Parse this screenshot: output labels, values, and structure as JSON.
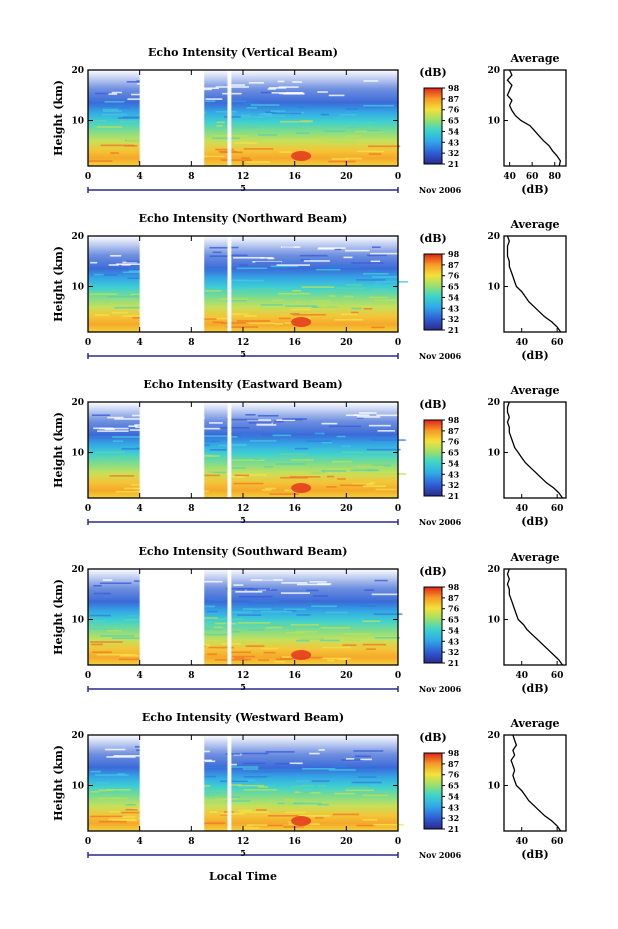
{
  "figure": {
    "time_axis_label": "Local Time",
    "height_axis_label": "Height (km)",
    "colorbar_unit": "(dB)",
    "colorbar_ticks": [
      "98",
      "87",
      "76",
      "65",
      "54",
      "43",
      "32",
      "21"
    ],
    "average_title": "Average",
    "average_xlabel": "(dB)",
    "date_label": "Nov 2006",
    "day_marker": "5"
  },
  "chart_data": [
    {
      "type": "heatmap",
      "title": "Echo Intensity (Vertical Beam)",
      "xlabel": "Local Time",
      "ylabel": "Height (km)",
      "xlim": [
        0,
        24
      ],
      "ylim": [
        1,
        20
      ],
      "x_ticks": [
        "0",
        "4",
        "8",
        "12",
        "16",
        "20",
        "0"
      ],
      "y_ticks": [
        "10",
        "20"
      ],
      "colorbar": {
        "unit": "(dB)",
        "ticks": [
          "98",
          "87",
          "76",
          "65",
          "54",
          "43",
          "32",
          "21"
        ],
        "range": [
          21,
          98
        ]
      },
      "data_gaps_hours": [
        [
          4,
          9
        ],
        [
          10.8,
          11.1
        ]
      ],
      "colors": {
        "low": "#2e2a8c",
        "mid": "#34d0d8",
        "high": "#e23a1a"
      },
      "average": {
        "title": "Average",
        "xlabel": "(dB)",
        "x_ticks": [
          "40",
          "60",
          "80"
        ],
        "xlim": [
          35,
          90
        ],
        "heights_km": [
          1,
          2,
          3,
          4,
          5,
          6,
          7,
          8,
          9,
          10,
          11,
          12,
          13,
          14,
          15,
          16,
          17,
          18,
          19,
          20
        ],
        "values_db": [
          84,
          85,
          82,
          78,
          75,
          70,
          66,
          62,
          58,
          50,
          45,
          42,
          40,
          42,
          38,
          40,
          42,
          38,
          42,
          40
        ]
      }
    },
    {
      "type": "heatmap",
      "title": "Echo Intensity (Northward Beam)",
      "xlabel": "Local Time",
      "ylabel": "Height (km)",
      "xlim": [
        0,
        24
      ],
      "ylim": [
        1,
        20
      ],
      "x_ticks": [
        "0",
        "4",
        "8",
        "12",
        "16",
        "20",
        "0"
      ],
      "y_ticks": [
        "10",
        "20"
      ],
      "colorbar": {
        "unit": "(dB)",
        "ticks": [
          "98",
          "87",
          "76",
          "65",
          "54",
          "43",
          "32",
          "21"
        ],
        "range": [
          21,
          98
        ]
      },
      "data_gaps_hours": [
        [
          4,
          9
        ],
        [
          10.8,
          11.1
        ]
      ],
      "colors": {
        "low": "#2e2a8c",
        "mid": "#34d0d8",
        "high": "#e23a1a"
      },
      "average": {
        "title": "Average",
        "xlabel": "(dB)",
        "x_ticks": [
          "40",
          "60"
        ],
        "xlim": [
          30,
          65
        ],
        "heights_km": [
          1,
          2,
          3,
          4,
          5,
          6,
          7,
          8,
          9,
          10,
          11,
          12,
          13,
          14,
          15,
          16,
          17,
          18,
          19,
          20
        ],
        "values_db": [
          62,
          60,
          57,
          53,
          50,
          47,
          44,
          42,
          40,
          37,
          36,
          35,
          34,
          33,
          33,
          32,
          32,
          32,
          33,
          32
        ]
      }
    },
    {
      "type": "heatmap",
      "title": "Echo Intensity (Eastward Beam)",
      "xlabel": "Local Time",
      "ylabel": "Height (km)",
      "xlim": [
        0,
        24
      ],
      "ylim": [
        1,
        20
      ],
      "x_ticks": [
        "0",
        "4",
        "8",
        "12",
        "16",
        "20",
        "0"
      ],
      "y_ticks": [
        "10",
        "20"
      ],
      "colorbar": {
        "unit": "(dB)",
        "ticks": [
          "98",
          "87",
          "76",
          "65",
          "54",
          "43",
          "32",
          "21"
        ],
        "range": [
          21,
          98
        ]
      },
      "data_gaps_hours": [
        [
          4,
          9
        ],
        [
          10.8,
          11.1
        ]
      ],
      "colors": {
        "low": "#2e2a8c",
        "mid": "#34d0d8",
        "high": "#e23a1a"
      },
      "average": {
        "title": "Average",
        "xlabel": "(dB)",
        "x_ticks": [
          "40",
          "60"
        ],
        "xlim": [
          30,
          65
        ],
        "heights_km": [
          1,
          2,
          3,
          4,
          5,
          6,
          7,
          8,
          9,
          10,
          11,
          12,
          13,
          14,
          15,
          16,
          17,
          18,
          19,
          20
        ],
        "values_db": [
          63,
          61,
          58,
          54,
          51,
          48,
          45,
          42,
          40,
          38,
          36,
          35,
          34,
          33,
          33,
          32,
          33,
          32,
          32,
          33
        ]
      }
    },
    {
      "type": "heatmap",
      "title": "Echo Intensity (Southward Beam)",
      "xlabel": "Local Time",
      "ylabel": "Height (km)",
      "xlim": [
        0,
        24
      ],
      "ylim": [
        1,
        20
      ],
      "x_ticks": [
        "0",
        "4",
        "8",
        "12",
        "16",
        "20",
        "0"
      ],
      "y_ticks": [
        "10",
        "20"
      ],
      "colorbar": {
        "unit": "(dB)",
        "ticks": [
          "98",
          "87",
          "76",
          "65",
          "54",
          "43",
          "32",
          "21"
        ],
        "range": [
          21,
          98
        ]
      },
      "data_gaps_hours": [
        [
          4,
          9
        ],
        [
          10.8,
          11.1
        ]
      ],
      "colors": {
        "low": "#2e2a8c",
        "mid": "#34d0d8",
        "high": "#e23a1a"
      },
      "average": {
        "title": "Average",
        "xlabel": "(dB)",
        "x_ticks": [
          "40",
          "60"
        ],
        "xlim": [
          30,
          65
        ],
        "heights_km": [
          1,
          2,
          3,
          4,
          5,
          6,
          7,
          8,
          9,
          10,
          11,
          12,
          13,
          14,
          15,
          16,
          17,
          18,
          19,
          20
        ],
        "values_db": [
          63,
          61,
          58,
          55,
          52,
          49,
          46,
          43,
          41,
          38,
          37,
          36,
          35,
          34,
          33,
          33,
          32,
          33,
          32,
          33
        ]
      }
    },
    {
      "type": "heatmap",
      "title": "Echo Intensity (Westward Beam)",
      "xlabel": "Local Time",
      "ylabel": "Height (km)",
      "xlim": [
        0,
        24
      ],
      "ylim": [
        1,
        20
      ],
      "x_ticks": [
        "0",
        "4",
        "8",
        "12",
        "16",
        "20",
        "0"
      ],
      "y_ticks": [
        "10",
        "20"
      ],
      "colorbar": {
        "unit": "(dB)",
        "ticks": [
          "98",
          "87",
          "76",
          "65",
          "54",
          "43",
          "32",
          "21"
        ],
        "range": [
          21,
          98
        ]
      },
      "data_gaps_hours": [
        [
          4,
          9
        ],
        [
          10.8,
          11.1
        ]
      ],
      "colors": {
        "low": "#2e2a8c",
        "mid": "#34d0d8",
        "high": "#e23a1a"
      },
      "average": {
        "title": "Average",
        "xlabel": "(dB)",
        "x_ticks": [
          "40",
          "60"
        ],
        "xlim": [
          30,
          65
        ],
        "heights_km": [
          1,
          2,
          3,
          4,
          5,
          6,
          7,
          8,
          9,
          10,
          11,
          12,
          13,
          14,
          15,
          16,
          17,
          18,
          19,
          20
        ],
        "values_db": [
          62,
          60,
          57,
          53,
          50,
          47,
          44,
          42,
          40,
          37,
          36,
          35,
          36,
          35,
          34,
          36,
          35,
          37,
          36,
          35
        ]
      }
    }
  ]
}
